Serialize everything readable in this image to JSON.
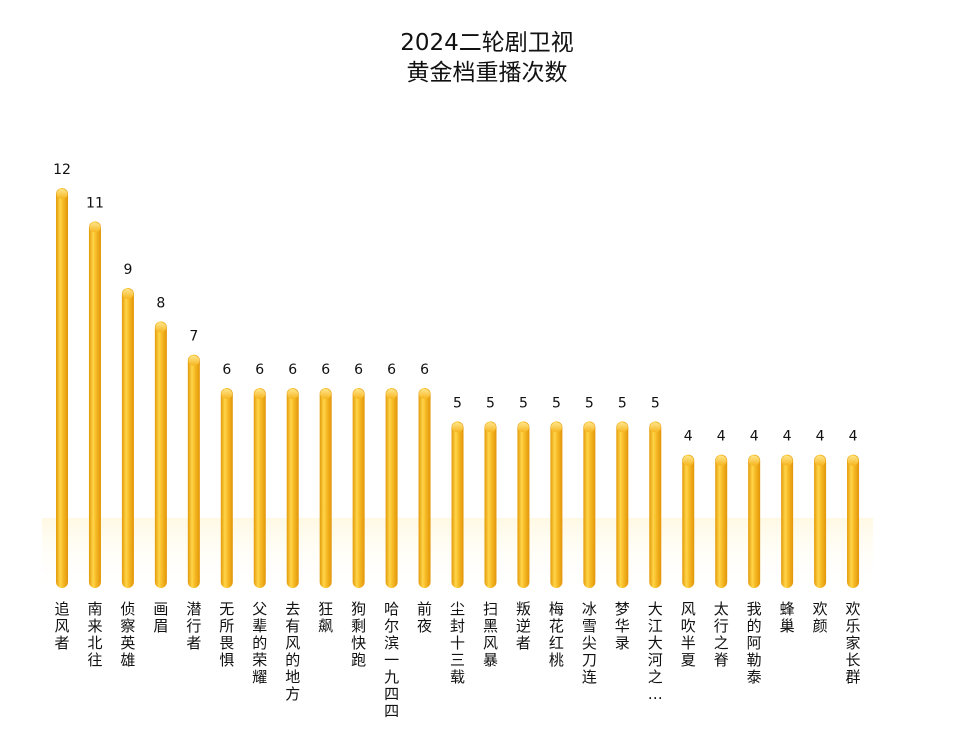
{
  "chart_data": {
    "type": "bar",
    "title_lines": [
      "2024二轮剧卫视",
      "黄金档重播次数"
    ],
    "title": "2024二轮剧卫视黄金档重播次数",
    "xlabel": "",
    "ylabel": "",
    "ylim": [
      0,
      12
    ],
    "grid": false,
    "legend": "none",
    "categories": [
      "追风者",
      "南来北往",
      "侦察英雄",
      "画眉",
      "潜行者",
      "无所畏惧",
      "父辈的荣耀",
      "去有风的地方",
      "狂飙",
      "狗剩快跑",
      "哈尔滨一九四四",
      "前夜",
      "尘封十三载",
      "扫黑风暴",
      "叛逆者",
      "梅花红桃",
      "冰雪尖刀连",
      "梦华录",
      "大江大河之…",
      "风吹半夏",
      "太行之脊",
      "我的阿勒泰",
      "蜂巢",
      "欢颜",
      "欢乐家长群"
    ],
    "values": [
      12,
      11,
      9,
      8,
      7,
      6,
      6,
      6,
      6,
      6,
      6,
      6,
      5,
      5,
      5,
      5,
      5,
      5,
      5,
      4,
      4,
      4,
      4,
      4,
      4
    ],
    "colors": {
      "bar": "#F6B51E",
      "bar_light": "#FFE070",
      "bar_dark": "#E39A08",
      "text": "#111111"
    }
  }
}
